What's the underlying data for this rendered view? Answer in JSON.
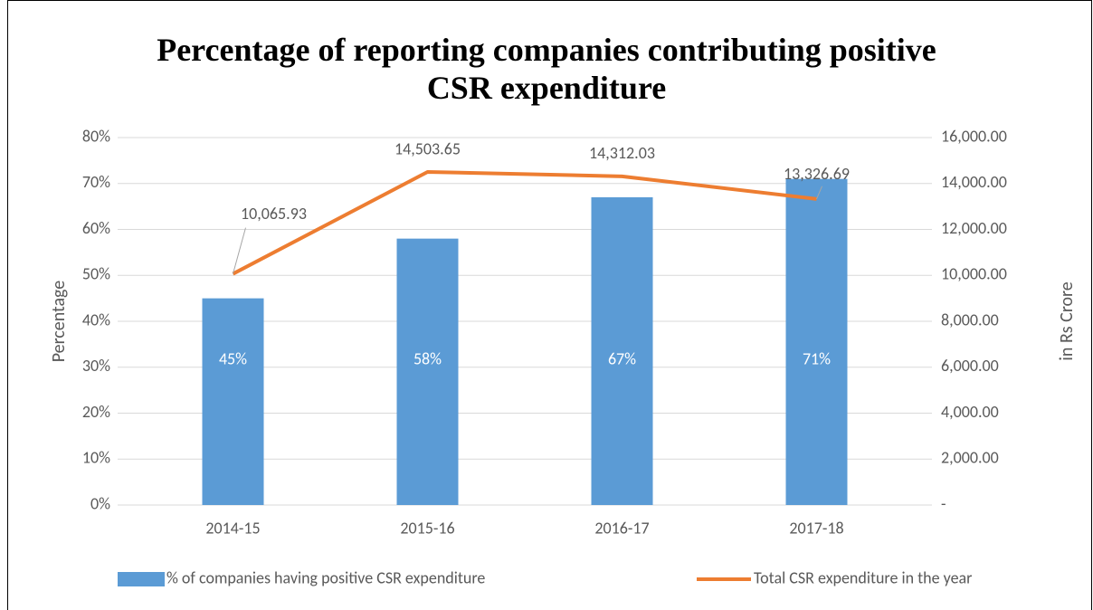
{
  "chart_data": {
    "type": "bar_line",
    "title": "Percentage of reporting companies contributing positive CSR expenditure",
    "y_label": "Percentage",
    "y2_label": "in Rs Crore",
    "categories": [
      "2014-15",
      "2015-16",
      "2016-17",
      "2017-18"
    ],
    "series": [
      {
        "name": "% of companies having positive CSR expenditure",
        "type": "bar",
        "color": "#5b9bd5",
        "values": [
          45,
          58,
          67,
          71
        ],
        "value_labels": [
          "45%",
          "58%",
          "67%",
          "71%"
        ]
      },
      {
        "name": "Total CSR expenditure in the year",
        "type": "line",
        "axis": "y2",
        "color": "#ed7d31",
        "values": [
          10065.93,
          14503.65,
          14312.03,
          13326.69
        ],
        "value_labels": [
          "10,065.93",
          "14,503.65",
          "14,312.03",
          "13,326.69"
        ]
      }
    ],
    "ylim": [
      0,
      80
    ],
    "yticks": [
      {
        "value": 0,
        "label": "0%"
      },
      {
        "value": 10,
        "label": "10%"
      },
      {
        "value": 20,
        "label": "20%"
      },
      {
        "value": 30,
        "label": "30%"
      },
      {
        "value": 40,
        "label": "40%"
      },
      {
        "value": 50,
        "label": "50%"
      },
      {
        "value": 60,
        "label": "60%"
      },
      {
        "value": 70,
        "label": "70%"
      },
      {
        "value": 80,
        "label": "80%"
      }
    ],
    "y2lim": [
      0,
      16000
    ],
    "y2ticks": [
      {
        "value": 0,
        "label": "-"
      },
      {
        "value": 2000,
        "label": "2,000.00"
      },
      {
        "value": 4000,
        "label": "4,000.00"
      },
      {
        "value": 6000,
        "label": "6,000.00"
      },
      {
        "value": 8000,
        "label": "8,000.00"
      },
      {
        "value": 10000,
        "label": "10,000.00"
      },
      {
        "value": 12000,
        "label": "12,000.00"
      },
      {
        "value": 14000,
        "label": "14,000.00"
      },
      {
        "value": 16000,
        "label": "16,000.00"
      }
    ],
    "grid": true,
    "legend": "bottom"
  }
}
